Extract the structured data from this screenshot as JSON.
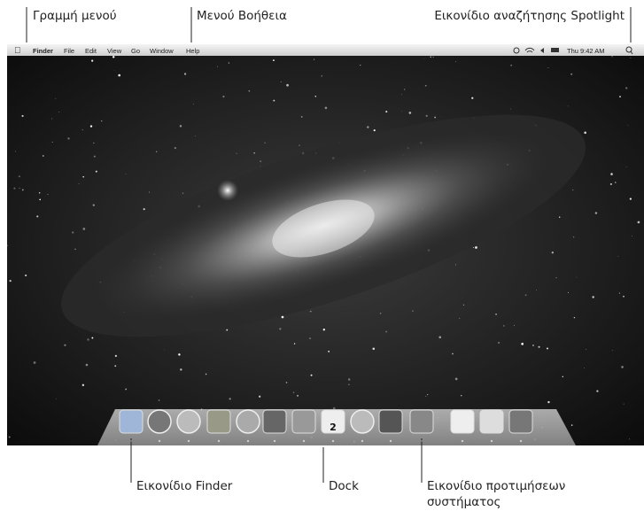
{
  "callouts": {
    "menu_bar": "Γραμμή μενού",
    "help_menu": "Μενού Βοήθεια",
    "spotlight": "Εικονίδιο αναζήτησης Spotlight",
    "finder_icon": "Εικονίδιο Finder",
    "dock": "Dock",
    "system_preferences": [
      "Εικονίδιο προτιμήσεων",
      "συστήματος"
    ]
  },
  "menu_bar": {
    "items": [
      "Finder",
      "File",
      "Edit",
      "View",
      "Go",
      "Window",
      "Help"
    ],
    "clock": "Thu 9:42 AM"
  },
  "dock": {
    "calendar_date": "2"
  }
}
